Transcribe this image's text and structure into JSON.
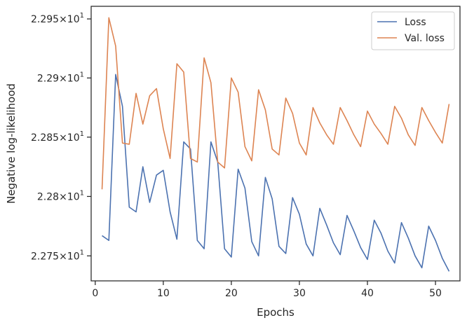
{
  "chart_data": {
    "type": "line",
    "xlabel": "Epochs",
    "ylabel": "Negative log-likelihood",
    "xlim": [
      -0.6,
      53.6
    ],
    "ylim": [
      22.729,
      22.9607
    ],
    "y_scale": "log",
    "grid": false,
    "legend_position": "top-right",
    "x_ticks": [
      0,
      10,
      20,
      30,
      40,
      50
    ],
    "x_tick_labels": [
      "0",
      "10",
      "20",
      "30",
      "40",
      "50"
    ],
    "y_ticks": [
      22.75,
      22.8,
      22.85,
      22.9,
      22.95
    ],
    "y_tick_labels": [
      {
        "mantissa": "2.275",
        "exponent": "1"
      },
      {
        "mantissa": "2.28",
        "exponent": "1"
      },
      {
        "mantissa": "2.285",
        "exponent": "1"
      },
      {
        "mantissa": "2.29",
        "exponent": "1"
      },
      {
        "mantissa": "2.295",
        "exponent": "1"
      }
    ],
    "tick_label_times": "×",
    "tick_label_base": "10",
    "x": [
      1,
      2,
      3,
      4,
      5,
      6,
      7,
      8,
      9,
      10,
      11,
      12,
      13,
      14,
      15,
      16,
      17,
      18,
      19,
      20,
      21,
      22,
      23,
      24,
      25,
      26,
      27,
      28,
      29,
      30,
      31,
      32,
      33,
      34,
      35,
      36,
      37,
      38,
      39,
      40,
      41,
      42,
      43,
      44,
      45,
      46,
      47,
      48,
      49,
      50,
      51,
      52
    ],
    "series": [
      {
        "name": "Loss",
        "color": "#4c72b0",
        "values": [
          22.767,
          22.763,
          22.903,
          22.876,
          22.791,
          22.787,
          22.825,
          22.795,
          22.818,
          22.822,
          22.787,
          22.764,
          22.846,
          22.84,
          22.763,
          22.756,
          22.846,
          22.829,
          22.756,
          22.749,
          22.823,
          22.807,
          22.762,
          22.75,
          22.816,
          22.798,
          22.758,
          22.752,
          22.799,
          22.785,
          22.76,
          22.75,
          22.79,
          22.776,
          22.761,
          22.751,
          22.784,
          22.771,
          22.757,
          22.747,
          22.78,
          22.769,
          22.754,
          22.744,
          22.778,
          22.765,
          22.75,
          22.74,
          22.775,
          22.763,
          22.748,
          22.737
        ]
      },
      {
        "name": "Val. loss",
        "color": "#dd8452",
        "values": [
          22.806,
          22.951,
          22.927,
          22.845,
          22.844,
          22.887,
          22.861,
          22.885,
          22.891,
          22.857,
          22.832,
          22.912,
          22.905,
          22.832,
          22.829,
          22.917,
          22.896,
          22.829,
          22.824,
          22.9,
          22.888,
          22.842,
          22.83,
          22.89,
          22.873,
          22.84,
          22.835,
          22.883,
          22.87,
          22.845,
          22.835,
          22.875,
          22.862,
          22.852,
          22.844,
          22.875,
          22.864,
          22.852,
          22.842,
          22.872,
          22.861,
          22.853,
          22.844,
          22.876,
          22.866,
          22.852,
          22.843,
          22.875,
          22.864,
          22.854,
          22.845,
          22.878
        ]
      }
    ]
  }
}
